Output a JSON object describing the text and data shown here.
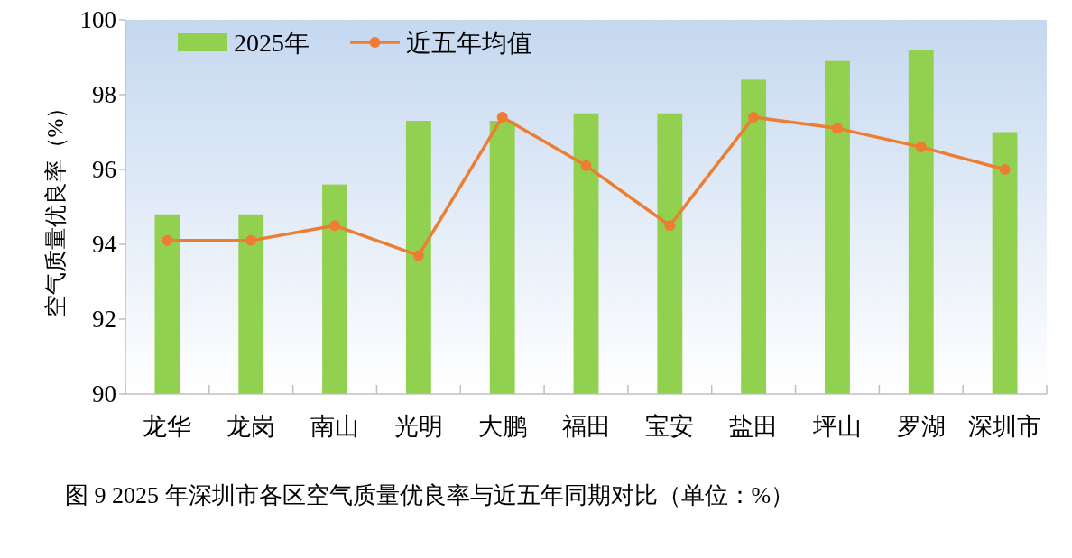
{
  "chart_data": {
    "type": "bar",
    "ylabel": "空气质量优良率（%）",
    "annotations": [
      "图 9 2025 年深圳市各区空气质量优良率与近五年同期对比（单位：%）"
    ],
    "categories": [
      "龙华",
      "龙岗",
      "南山",
      "光明",
      "大鹏",
      "福田",
      "宝安",
      "盐田",
      "坪山",
      "罗湖",
      "深圳市"
    ],
    "series": [
      {
        "name": "2025年",
        "color": "#92d050",
        "values": [
          94.8,
          94.8,
          95.6,
          97.3,
          97.3,
          97.5,
          97.5,
          98.4,
          98.9,
          99.2,
          97.0
        ]
      },
      {
        "name": "近五年均值",
        "type": "line",
        "color": "#ed7d31",
        "marker": "circle",
        "values": [
          94.1,
          94.1,
          94.5,
          93.7,
          97.4,
          96.1,
          94.5,
          97.4,
          97.1,
          96.6,
          96.0
        ]
      }
    ],
    "ylim": [
      90,
      100
    ],
    "yticks": [
      90,
      92,
      94,
      96,
      98,
      100
    ],
    "grid": false,
    "legend": "top left"
  }
}
